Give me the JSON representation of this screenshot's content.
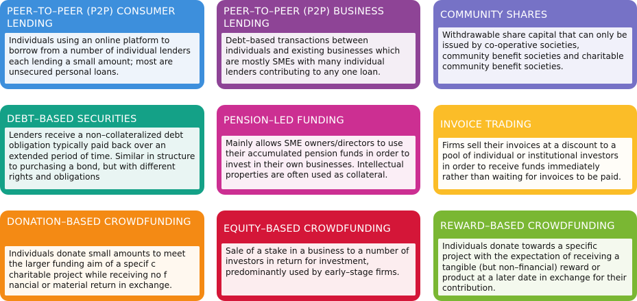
{
  "cards": [
    {
      "title": "PEER–TO–PEER (P2P) CONSUMER LENDING",
      "description": "Individuals using an online platform to borrow from a number of individual lenders each lending a small amount; most are unsecured personal loans.",
      "color": "#3d8fdc",
      "body_color": "#eef4fb"
    },
    {
      "title": "PEER–TO–PEER (P2P) BUSINESS LENDING",
      "description": "Debt–based transactions between individuals and existing businesses which are mostly SMEs with many individual lenders contributing to any one loan.",
      "color": "#8e4496",
      "body_color": "#f4eef5"
    },
    {
      "title": "COMMUNITY SHARES",
      "description": "Withdrawable share capital that can only be issued by co-operative societies, community benefit societies and charitable community benefit societies.",
      "color": "#7672c6",
      "body_color": "#f1f1fa"
    },
    {
      "title": "DEBT–BASED SECURITIES",
      "description": "Lenders receive a non–collateralized debt obligation typically paid back over an extended period of time. Similar in structure to purchasing a bond, but with different rights and obligations",
      "color": "#14a187",
      "body_color": "#e9f5f3"
    },
    {
      "title": "PENSION–LED FUNDING",
      "description": "Mainly allows SME owners/directors to use their accumulated pension funds in order to invest in their own businesses. Intellectual properties are often used as collateral.",
      "color": "#cc2f92",
      "body_color": "#fbeef6"
    },
    {
      "title": "INVOICE TRADING",
      "description": "Firms sell their invoices at a discount to a pool of individual or institutional investors in order to receive funds immediately rather than waiting for invoices to be paid.",
      "color": "#fbbd28",
      "body_color": "#fffdf8"
    },
    {
      "title": "DONATION–BASED CROWDFUNDING",
      "description": "Individuals donate small amounts to meet the larger funding aim of a specif c charitable project while receiving no f nancial or material return in exchange.",
      "color": "#f48a14",
      "body_color": "#fff8ef"
    },
    {
      "title": "EQUITY–BASED CROWDFUNDING",
      "description": "Sale of a stake in a business to a number of investors in return for investment, predominantly used by early–stage firms.",
      "color": "#d41638",
      "body_color": "#fcedef"
    },
    {
      "title": "REWARD–BASED CROWDFUNDING",
      "description": "Individuals donate towards a specific project with the expectation of receiving a tangible (but non–financial) reward or product at a later date in exchange for their contribution.",
      "color": "#7ab733",
      "body_color": "#f4f9ee"
    }
  ]
}
